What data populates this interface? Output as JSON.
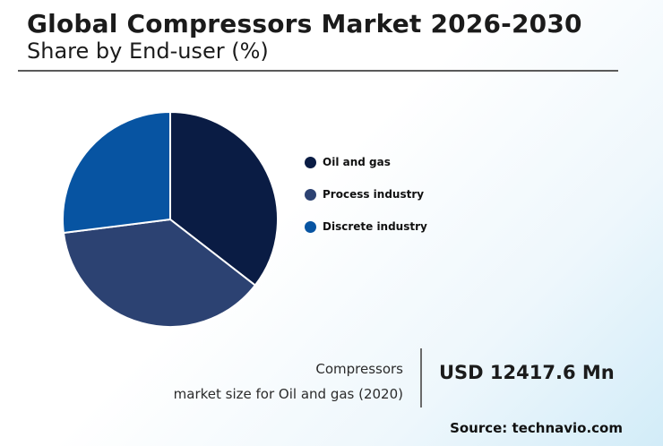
{
  "header": {
    "title": "Global Compressors Market 2026-2030",
    "subtitle": "Share by End-user (%)"
  },
  "chart_data": {
    "type": "pie",
    "categories": [
      "Oil and gas",
      "Process industry",
      "Discrete industry"
    ],
    "values": [
      35.5,
      37.5,
      27
    ],
    "colors": [
      "#0a1c44",
      "#2c4272",
      "#0754a2"
    ],
    "legend_position": "right"
  },
  "stat": {
    "label_line1": "Compressors",
    "label_line2": "market size for Oil and gas (2020)",
    "value": "USD 12417.6 Mn"
  },
  "footer": {
    "source": "Source: technavio.com"
  }
}
